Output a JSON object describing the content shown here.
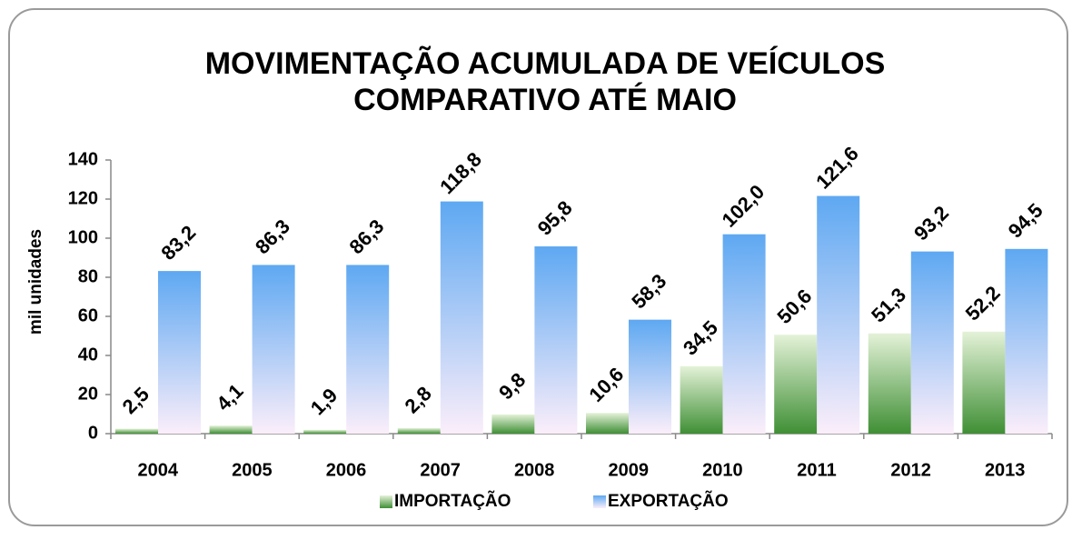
{
  "chart_data": {
    "type": "bar",
    "title": "MOVIMENTAÇÃO ACUMULADA DE VEÍCULOS",
    "subtitle": "COMPARATIVO ATÉ MAIO",
    "y_label": "mil unidades",
    "categories": [
      "2004",
      "2005",
      "2006",
      "2007",
      "2008",
      "2009",
      "2010",
      "2011",
      "2012",
      "2013"
    ],
    "series": [
      {
        "name": "IMPORTAÇÃO",
        "color": "#3f8f35",
        "values": [
          2.5,
          4.1,
          1.9,
          2.8,
          9.8,
          10.6,
          34.5,
          50.6,
          51.3,
          52.2
        ],
        "value_labels": [
          "2,5",
          "4,1",
          "1,9",
          "2,8",
          "9,8",
          "10,6",
          "34,5",
          "50,6",
          "51,3",
          "52,2"
        ]
      },
      {
        "name": "EXPORTAÇÃO",
        "color": "#5ea8f2",
        "values": [
          83.2,
          86.3,
          86.3,
          118.8,
          95.8,
          58.3,
          102.0,
          121.6,
          93.2,
          94.5
        ],
        "value_labels": [
          "83,2",
          "86,3",
          "86,3",
          "118,8",
          "95,8",
          "58,3",
          "102,0",
          "121,6",
          "93,2",
          "94,5"
        ]
      }
    ],
    "ylim": [
      0,
      140
    ],
    "yticks": [
      0,
      20,
      40,
      60,
      80,
      100,
      120,
      140
    ],
    "grid": false,
    "legend": "bottom"
  }
}
